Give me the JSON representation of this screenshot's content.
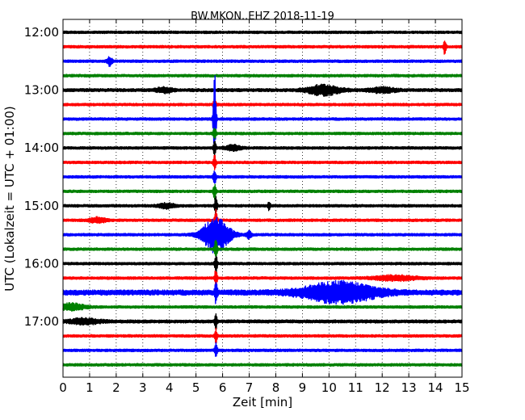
{
  "chart_data": {
    "type": "line",
    "title": "BW.MKON..EHZ 2018-11-19",
    "xlabel": "Zeit  [min]",
    "ylabel": "UTC (Lokalzeit = UTC + 01:00)",
    "xlim": [
      0,
      15
    ],
    "x_ticks": [
      "0",
      "1",
      "2",
      "3",
      "4",
      "5",
      "6",
      "7",
      "8",
      "9",
      "10",
      "11",
      "12",
      "13",
      "14",
      "15"
    ],
    "y_tick_labels": [
      "12:00",
      "13:00",
      "14:00",
      "15:00",
      "16:00",
      "17:00"
    ],
    "traces_per_hour": 4,
    "trace_offset_minutes": 15,
    "trace_colors": [
      "#000000",
      "#ff0000",
      "#0000ff",
      "#008000"
    ],
    "grid": {
      "vertical": "dotted"
    },
    "traces": [
      {
        "start": "12:00",
        "noise": 1.0,
        "events": []
      },
      {
        "start": "12:15",
        "noise": 1.0,
        "events": [
          {
            "t": 14.35,
            "amp": 9,
            "dur": 0.05
          }
        ]
      },
      {
        "start": "12:30",
        "noise": 1.0,
        "events": [
          {
            "t": 1.75,
            "amp": 5,
            "dur": 0.1
          }
        ]
      },
      {
        "start": "12:45",
        "noise": 1.0,
        "events": []
      },
      {
        "start": "13:00",
        "noise": 1.2,
        "events": [
          {
            "t": 9.8,
            "amp": 6,
            "dur": 0.6
          },
          {
            "t": 12.0,
            "amp": 3,
            "dur": 0.5
          },
          {
            "t": 3.8,
            "amp": 3,
            "dur": 0.3
          }
        ]
      },
      {
        "start": "13:15",
        "noise": 1.0,
        "events": [
          {
            "t": 5.7,
            "amp": 9,
            "dur": 0.05
          }
        ]
      },
      {
        "start": "13:30",
        "noise": 1.0,
        "events": [
          {
            "t": 5.7,
            "amp": 60,
            "dur": 0.05
          }
        ]
      },
      {
        "start": "13:45",
        "noise": 1.0,
        "events": [
          {
            "t": 5.7,
            "amp": 9,
            "dur": 0.05
          }
        ]
      },
      {
        "start": "14:00",
        "noise": 1.0,
        "events": [
          {
            "t": 5.7,
            "amp": 9,
            "dur": 0.05
          },
          {
            "t": 6.4,
            "amp": 3,
            "dur": 0.3
          }
        ]
      },
      {
        "start": "14:15",
        "noise": 1.0,
        "events": [
          {
            "t": 5.7,
            "amp": 9,
            "dur": 0.05
          }
        ]
      },
      {
        "start": "14:30",
        "noise": 1.0,
        "events": [
          {
            "t": 5.7,
            "amp": 9,
            "dur": 0.05
          }
        ]
      },
      {
        "start": "14:45",
        "noise": 1.0,
        "events": [
          {
            "t": 5.7,
            "amp": 9,
            "dur": 0.05
          }
        ]
      },
      {
        "start": "15:00",
        "noise": 1.0,
        "events": [
          {
            "t": 5.75,
            "amp": 12,
            "dur": 0.05
          },
          {
            "t": 7.75,
            "amp": 6,
            "dur": 0.05
          },
          {
            "t": 3.9,
            "amp": 3,
            "dur": 0.3
          }
        ]
      },
      {
        "start": "15:15",
        "noise": 1.0,
        "events": [
          {
            "t": 5.75,
            "amp": 12,
            "dur": 0.05
          },
          {
            "t": 1.3,
            "amp": 3,
            "dur": 0.3
          }
        ]
      },
      {
        "start": "15:30",
        "noise": 1.0,
        "events": [
          {
            "t": 5.75,
            "amp": 22,
            "dur": 0.5
          },
          {
            "t": 7.0,
            "amp": 5,
            "dur": 0.1
          }
        ]
      },
      {
        "start": "15:45",
        "noise": 1.0,
        "events": [
          {
            "t": 5.75,
            "amp": 14,
            "dur": 0.05
          }
        ]
      },
      {
        "start": "16:00",
        "noise": 1.0,
        "events": [
          {
            "t": 5.75,
            "amp": 12,
            "dur": 0.05
          }
        ]
      },
      {
        "start": "16:15",
        "noise": 1.0,
        "events": [
          {
            "t": 5.75,
            "amp": 12,
            "dur": 0.05
          },
          {
            "t": 12.5,
            "amp": 3,
            "dur": 0.8
          }
        ]
      },
      {
        "start": "16:30",
        "noise": 2.0,
        "events": [
          {
            "t": 5.75,
            "amp": 14,
            "dur": 0.05
          },
          {
            "t": 10.4,
            "amp": 12,
            "dur": 1.4
          }
        ]
      },
      {
        "start": "16:45",
        "noise": 1.0,
        "events": [
          {
            "t": 0.3,
            "amp": 4,
            "dur": 0.5
          }
        ]
      },
      {
        "start": "17:00",
        "noise": 1.2,
        "events": [
          {
            "t": 0.8,
            "amp": 3,
            "dur": 0.6
          },
          {
            "t": 5.75,
            "amp": 8,
            "dur": 0.05
          }
        ]
      },
      {
        "start": "17:15",
        "noise": 1.0,
        "events": [
          {
            "t": 5.75,
            "amp": 9,
            "dur": 0.05
          }
        ]
      },
      {
        "start": "17:30",
        "noise": 1.0,
        "events": [
          {
            "t": 5.75,
            "amp": 9,
            "dur": 0.05
          }
        ]
      },
      {
        "start": "17:45",
        "noise": 1.0,
        "events": []
      }
    ]
  }
}
